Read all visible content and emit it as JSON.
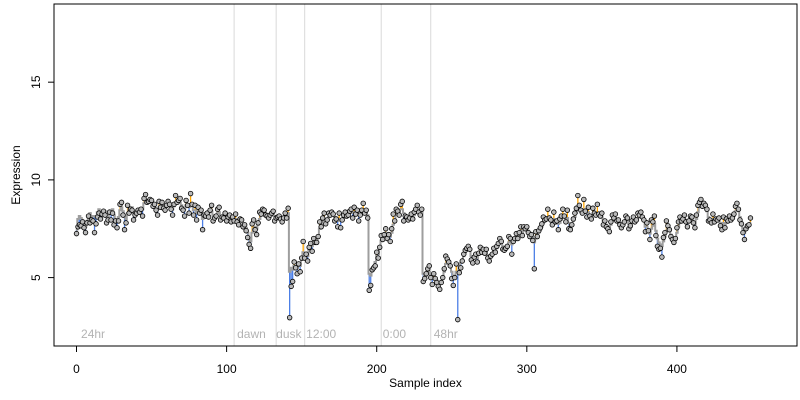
{
  "chart_data": {
    "type": "scatter",
    "xlabel": "Sample index",
    "ylabel": "Expression",
    "xlim": [
      -15,
      480
    ],
    "ylim": [
      1.5,
      19
    ],
    "x_ticks": [
      0,
      100,
      200,
      300,
      400
    ],
    "y_ticks": [
      5,
      10,
      15
    ],
    "grid": false,
    "segment_boundaries": [
      105,
      133,
      152,
      203,
      236
    ],
    "segment_labels": [
      {
        "x": 3,
        "text": "24hr"
      },
      {
        "x": 107,
        "text": "dawn"
      },
      {
        "x": 133,
        "text": "dusk"
      },
      {
        "x": 153,
        "text": "12:00"
      },
      {
        "x": 204,
        "text": "0:00"
      },
      {
        "x": 238,
        "text": "48hr"
      }
    ],
    "colors": {
      "point_fill": "#b9b9b9",
      "point_stroke": "#000000",
      "step_line": "#9e9e9e",
      "up_dev": "#ffa500",
      "down_dev": "#4c7fe6",
      "boundary": "#d9d9d9",
      "label": "#b3b3b3"
    },
    "series": [
      {
        "values": [
          7.25,
          7.6,
          7.7,
          7.65,
          7.85,
          7.55,
          7.3,
          7.8,
          8.15,
          7.8,
          7.95,
          7.9,
          7.3,
          7.75,
          8.1,
          8.3,
          8.0,
          8.25,
          8.4,
          8.2,
          7.8,
          7.95,
          8.35,
          7.95,
          8.3,
          7.7,
          7.9,
          7.55,
          7.9,
          8.75,
          8.85,
          8.2,
          7.45,
          7.8,
          8.7,
          8.3,
          8.5,
          8.45,
          7.95,
          8.2,
          8.3,
          8.45,
          8.35,
          8.5,
          8.15,
          9.05,
          9.25,
          8.85,
          8.9,
          9.0,
          8.95,
          8.65,
          8.75,
          8.45,
          8.2,
          8.9,
          8.6,
          8.85,
          8.55,
          8.45,
          8.7,
          8.9,
          8.75,
          8.5,
          8.2,
          8.75,
          9.2,
          8.85,
          8.95,
          9.05,
          8.55,
          8.45,
          8.15,
          8.95,
          8.7,
          8.3,
          9.3,
          8.75,
          8.2,
          8.7,
          7.95,
          8.6,
          8.3,
          8.45,
          7.45,
          8.2,
          8.15,
          8.3,
          8.1,
          8.45,
          8.7,
          7.9,
          8.05,
          8.15,
          8.5,
          8.6,
          7.95,
          8.1,
          8.05,
          8.3,
          7.9,
          8.1,
          8.2,
          7.85,
          8.1,
          7.9,
          8.25,
          7.85,
          7.7,
          8.0,
          7.95,
          7.6,
          7.7,
          7.4,
          7.05,
          6.7,
          6.5,
          7.75,
          7.95,
          7.45,
          7.2,
          7.8,
          8.35,
          8.25,
          8.5,
          8.45,
          8.2,
          8.15,
          8.05,
          8.2,
          8.3,
          8.4,
          7.9,
          8.05,
          8.1,
          8.15,
          8.0,
          7.85,
          8.05,
          8.3,
          8.05,
          8.55,
          2.95,
          4.55,
          4.8,
          5.8,
          5.5,
          5.2,
          5.7,
          5.3,
          6.0,
          6.85,
          6.0,
          6.2,
          5.85,
          6.55,
          6.75,
          6.35,
          7.0,
          6.8,
          6.8,
          7.1,
          7.85,
          7.6,
          8.05,
          8.3,
          7.75,
          7.95,
          8.3,
          8.2,
          8.35,
          8.25,
          7.9,
          8.0,
          7.6,
          8.3,
          7.55,
          7.95,
          8.2,
          8.35,
          8.15,
          8.2,
          8.4,
          8.5,
          8.05,
          8.6,
          8.25,
          8.45,
          7.9,
          8.2,
          8.45,
          8.8,
          8.3,
          8.45,
          8.05,
          4.35,
          4.6,
          5.4,
          5.5,
          5.6,
          6.3,
          6.0,
          6.55,
          7.15,
          6.95,
          7.2,
          7.5,
          7.0,
          7.2,
          6.85,
          7.5,
          8.25,
          7.9,
          8.5,
          8.4,
          8.2,
          8.75,
          8.9,
          7.9,
          8.15,
          8.1,
          7.95,
          8.05,
          8.25,
          8.0,
          8.35,
          8.5,
          8.7,
          8.35,
          8.2,
          8.5,
          4.8,
          4.95,
          5.2,
          5.45,
          5.6,
          5.0,
          4.65,
          5.2,
          4.95,
          4.75,
          4.55,
          4.4,
          4.75,
          5.0,
          5.45,
          6.1,
          5.95,
          5.8,
          5.6,
          4.95,
          4.6,
          5.0,
          5.7,
          2.85,
          5.25,
          5.5,
          5.85,
          6.2,
          6.4,
          6.5,
          6.6,
          6.45,
          5.9,
          5.75,
          6.05,
          6.2,
          5.8,
          6.25,
          6.55,
          6.3,
          6.45,
          6.25,
          6.45,
          6.0,
          5.85,
          6.1,
          6.2,
          6.5,
          6.3,
          6.6,
          6.75,
          7.0,
          6.85,
          6.45,
          6.4,
          6.5,
          6.6,
          7.1,
          7.0,
          6.2,
          6.85,
          7.0,
          7.25,
          7.0,
          7.3,
          7.6,
          7.15,
          7.6,
          7.5,
          7.6,
          7.3,
          7.1,
          7.2,
          6.9,
          5.45,
          7.35,
          7.1,
          7.4,
          7.55,
          7.75,
          8.1,
          7.95,
          8.0,
          8.5,
          8.05,
          7.95,
          7.7,
          8.35,
          7.85,
          7.9,
          7.45,
          8.0,
          8.15,
          8.5,
          8.15,
          7.85,
          8.45,
          7.5,
          7.45,
          7.7,
          8.0,
          8.3,
          8.55,
          9.2,
          8.7,
          8.45,
          8.3,
          9.0,
          8.4,
          8.1,
          8.6,
          8.15,
          8.0,
          8.55,
          8.3,
          8.2,
          8.75,
          8.25,
          8.15,
          8.3,
          7.7,
          7.9,
          7.6,
          7.5,
          7.35,
          7.85,
          8.2,
          8.05,
          8.25,
          7.9,
          7.95,
          7.7,
          7.55,
          7.7,
          7.85,
          8.15,
          8.05,
          7.5,
          7.65,
          7.9,
          8.1,
          7.85,
          7.95,
          8.3,
          8.2,
          8.35,
          8.1,
          7.95,
          7.35,
          7.8,
          7.4,
          6.95,
          7.95,
          7.85,
          8.15,
          7.15,
          6.6,
          6.45,
          6.5,
          6.05,
          7.05,
          7.3,
          7.9,
          7.65,
          7.45,
          7.1,
          6.95,
          6.8,
          7.0,
          7.55,
          7.85,
          8.1,
          7.9,
          8.0,
          8.2,
          7.85,
          7.6,
          7.9,
          8.15,
          8.1,
          7.8,
          7.55,
          8.2,
          8.7,
          8.85,
          9.0,
          8.65,
          8.8,
          8.7,
          8.5,
          7.9,
          7.95,
          7.8,
          8.25,
          7.85,
          8.0,
          7.95,
          8.05,
          7.65,
          7.45,
          8.1,
          7.55,
          8.0,
          7.9,
          8.15,
          7.95,
          8.05,
          8.25,
          8.65,
          8.8,
          8.5,
          7.95,
          7.75,
          7.3,
          6.95,
          7.5,
          7.65,
          7.7,
          8.05
        ]
      },
      {
        "values": [
          7.45,
          8.0,
          8.15,
          8.05,
          7.95,
          7.75,
          7.6,
          7.9,
          8.15,
          8.3,
          8.0,
          8.15,
          8.15,
          8.1,
          8.35,
          8.5,
          8.3,
          8.35,
          8.45,
          8.4,
          8.1,
          8.1,
          8.25,
          8.4,
          8.5,
          8.2,
          8.0,
          7.9,
          8.1,
          8.45,
          8.6,
          8.4,
          8.1,
          8.0,
          8.3,
          8.5,
          8.6,
          8.6,
          8.3,
          8.3,
          8.4,
          8.5,
          8.45,
          8.45,
          8.5,
          8.8,
          8.95,
          8.9,
          8.85,
          8.9,
          8.8,
          8.7,
          8.6,
          8.5,
          8.5,
          8.6,
          8.7,
          8.7,
          8.6,
          8.55,
          8.65,
          8.75,
          8.75,
          8.6,
          8.5,
          8.65,
          8.85,
          8.95,
          8.95,
          8.85,
          8.7,
          8.55,
          8.5,
          8.7,
          8.75,
          8.6,
          8.75,
          8.65,
          8.45,
          8.45,
          8.3,
          8.4,
          8.4,
          8.3,
          8.0,
          8.05,
          8.15,
          8.2,
          8.2,
          8.35,
          8.4,
          8.2,
          8.05,
          8.15,
          8.3,
          8.35,
          8.15,
          8.05,
          8.1,
          8.2,
          8.05,
          8.05,
          8.1,
          8.0,
          8.0,
          7.95,
          8.0,
          7.95,
          7.85,
          7.9,
          7.9,
          7.7,
          7.65,
          7.55,
          7.3,
          7.0,
          6.85,
          7.3,
          7.5,
          7.6,
          7.5,
          7.7,
          8.0,
          8.2,
          8.35,
          8.4,
          8.3,
          8.25,
          8.15,
          8.15,
          8.25,
          8.3,
          8.15,
          8.05,
          8.05,
          8.1,
          8.05,
          7.95,
          8.0,
          8.15,
          8.15,
          8.3,
          5.3,
          5.5,
          5.4,
          5.6,
          5.6,
          5.5,
          5.6,
          5.6,
          5.9,
          6.3,
          6.2,
          6.1,
          6.1,
          6.4,
          6.6,
          6.6,
          6.8,
          6.9,
          6.9,
          7.1,
          7.5,
          7.7,
          7.9,
          8.0,
          8.0,
          8.0,
          8.1,
          8.2,
          8.2,
          8.2,
          8.1,
          8.0,
          7.9,
          8.0,
          7.9,
          7.95,
          8.05,
          8.15,
          8.2,
          8.2,
          8.3,
          8.35,
          8.3,
          8.35,
          8.35,
          8.3,
          8.2,
          8.2,
          8.3,
          8.4,
          8.4,
          8.35,
          8.2,
          5.2,
          5.1,
          5.4,
          5.6,
          5.8,
          6.1,
          6.2,
          6.5,
          6.9,
          7.1,
          7.2,
          7.3,
          7.2,
          7.2,
          7.1,
          7.3,
          7.7,
          7.9,
          8.2,
          8.3,
          8.3,
          8.5,
          8.5,
          8.3,
          8.2,
          8.15,
          8.1,
          8.05,
          8.1,
          8.1,
          8.2,
          8.3,
          8.4,
          8.35,
          8.3,
          8.35,
          5.2,
          5.1,
          5.1,
          5.2,
          5.3,
          5.1,
          4.95,
          4.95,
          4.9,
          4.85,
          4.75,
          4.7,
          4.8,
          5.0,
          5.3,
          5.7,
          5.85,
          5.8,
          5.6,
          5.3,
          5.1,
          5.1,
          5.3,
          5.3,
          5.6,
          5.75,
          5.9,
          6.1,
          6.3,
          6.4,
          6.45,
          6.4,
          6.1,
          6.0,
          6.05,
          6.1,
          6.0,
          6.2,
          6.35,
          6.35,
          6.35,
          6.3,
          6.35,
          6.15,
          6.05,
          6.1,
          6.2,
          6.35,
          6.4,
          6.5,
          6.65,
          6.8,
          6.75,
          6.6,
          6.5,
          6.5,
          6.6,
          6.8,
          6.9,
          6.7,
          6.8,
          6.9,
          7.05,
          7.1,
          7.2,
          7.4,
          7.3,
          7.45,
          7.5,
          7.5,
          7.4,
          7.3,
          7.2,
          7.1,
          6.8,
          7.0,
          7.15,
          7.3,
          7.45,
          7.6,
          7.8,
          7.9,
          7.95,
          8.1,
          8.05,
          7.95,
          7.9,
          8.0,
          7.95,
          7.85,
          7.75,
          7.8,
          7.95,
          8.15,
          8.1,
          8.0,
          8.05,
          7.8,
          7.6,
          7.7,
          7.9,
          8.1,
          8.3,
          8.5,
          8.55,
          8.45,
          8.35,
          8.5,
          8.4,
          8.3,
          8.35,
          8.2,
          8.1,
          8.2,
          8.25,
          8.2,
          8.3,
          8.2,
          8.1,
          8.1,
          7.9,
          7.85,
          7.7,
          7.6,
          7.55,
          7.7,
          7.9,
          8.0,
          8.05,
          7.95,
          7.9,
          7.8,
          7.7,
          7.7,
          7.8,
          7.95,
          7.95,
          7.75,
          7.7,
          7.8,
          7.9,
          7.9,
          7.95,
          8.05,
          8.1,
          8.15,
          8.05,
          7.9,
          7.6,
          7.6,
          7.45,
          7.25,
          7.5,
          7.65,
          7.75,
          7.4,
          7.0,
          6.8,
          6.7,
          6.6,
          6.85,
          7.1,
          7.4,
          7.5,
          7.4,
          7.2,
          7.05,
          6.95,
          7.05,
          7.3,
          7.6,
          7.8,
          7.9,
          7.95,
          8.05,
          7.95,
          7.8,
          7.85,
          7.95,
          7.95,
          7.8,
          7.75,
          8.0,
          8.35,
          8.6,
          8.7,
          8.65,
          8.65,
          8.6,
          8.4,
          8.1,
          8.0,
          7.95,
          8.0,
          7.95,
          7.95,
          7.95,
          7.95,
          7.8,
          7.65,
          7.8,
          7.7,
          7.8,
          7.85,
          7.95,
          7.95,
          8.0,
          8.15,
          8.4,
          8.6,
          8.4,
          8.1,
          7.85,
          7.5,
          7.3,
          7.45,
          7.55,
          7.65,
          7.8
        ]
      }
    ]
  }
}
